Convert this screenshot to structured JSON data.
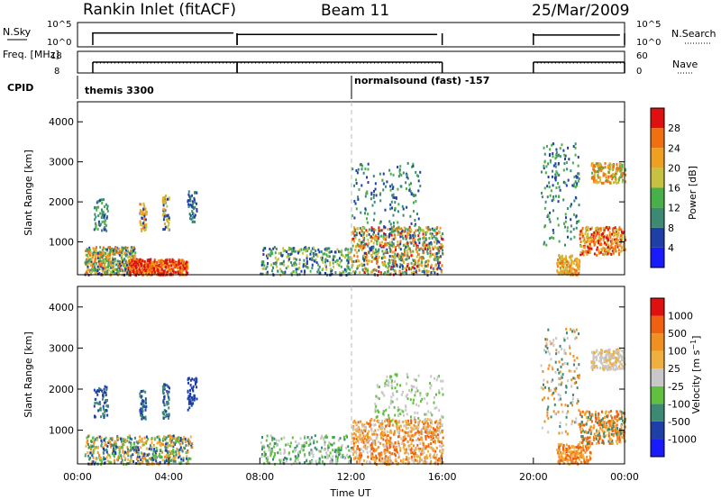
{
  "header": {
    "station": "Rankin Inlet (fitACF)",
    "beam": "Beam 11",
    "date": "25/Mar/2009"
  },
  "colors": {
    "frame": "#000000",
    "power_scale": [
      "#1a1aff",
      "#1f3fa8",
      "#3c8a74",
      "#48b048",
      "#c8c040",
      "#f0a020",
      "#f07010",
      "#e01010"
    ],
    "velocity_scale": [
      "#e01010",
      "#f06010",
      "#f09020",
      "#f0b040",
      "#c8c8c8",
      "#60c040",
      "#3c8a74",
      "#1f3fa8",
      "#1a1aff"
    ]
  },
  "chart_data": [
    {
      "type": "line",
      "name": "nsky-nsearch-panel",
      "ylabel_left": "N.Sky",
      "ylabel_right": "N.Search",
      "left_ticks": [
        "10^5",
        "10^0"
      ],
      "right_ticks": [
        "10^5",
        "10^0"
      ],
      "xlim": [
        0,
        24
      ],
      "segments": [
        [
          0.67,
          7.0
        ],
        [
          7.0,
          16.0
        ],
        [
          20.0,
          24.0
        ]
      ]
    },
    {
      "type": "line",
      "name": "freq-nave-panel",
      "ylabel_left": "Freq. [MHz]",
      "ylabel_right": "Nave",
      "left_ticks": [
        "18",
        "8"
      ],
      "right_ticks": [
        "60",
        "0"
      ],
      "xlim": [
        0,
        24
      ],
      "segments": [
        [
          0.67,
          7.0
        ],
        [
          7.0,
          16.0
        ],
        [
          20.0,
          24.0
        ]
      ]
    },
    {
      "type": "table",
      "name": "cpid-strip",
      "label": "CPID",
      "entries": [
        {
          "start": 0.67,
          "text": "themis 3300"
        },
        {
          "start": 12.0,
          "text": "normalsound (fast) -157"
        }
      ]
    },
    {
      "type": "heatmap",
      "name": "power-panel",
      "ylabel": "Slant Range [km]",
      "yticks": [
        1000,
        2000,
        3000,
        4000
      ],
      "ylim": [
        180,
        4500
      ],
      "xlim": [
        0,
        24
      ],
      "colorbar_label": "Power [dB]",
      "colorbar_ticks": [
        4,
        8,
        12,
        16,
        20,
        24,
        28
      ]
    },
    {
      "type": "heatmap",
      "name": "velocity-panel",
      "ylabel": "Slant Range [km]",
      "yticks": [
        1000,
        2000,
        3000,
        4000
      ],
      "ylim": [
        180,
        4500
      ],
      "xlim": [
        0,
        24
      ],
      "colorbar_label": "Velocity [m s^-1]",
      "colorbar_ticks": [
        "1000",
        "500",
        "100",
        "25",
        "-25",
        "-100",
        "-500",
        "-1000"
      ]
    }
  ],
  "xaxis": {
    "ticks": [
      "00:00",
      "04:00",
      "08:00",
      "12:00",
      "16:00",
      "20:00",
      "00:00"
    ],
    "label": "Time UT"
  }
}
